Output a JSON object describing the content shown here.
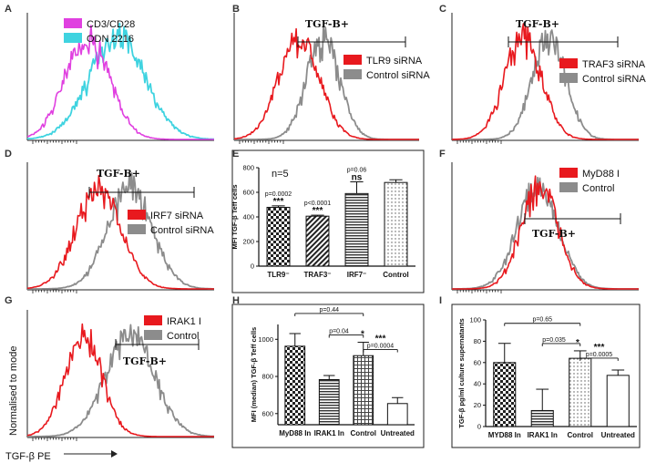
{
  "colors": {
    "red": "#e8191e",
    "gray": "#8c8c8c",
    "magenta": "#e040e0",
    "cyan": "#3fd3e0"
  },
  "chart_data": [
    {
      "panel": "A",
      "type": "histogram",
      "legend": [
        "CD3/CD28",
        "ODN 2216"
      ],
      "peaks": [
        0.32,
        0.48
      ],
      "widths": [
        0.12,
        0.15
      ]
    },
    {
      "panel": "B",
      "type": "histogram",
      "legend": [
        "TLR9 siRNA",
        "Control siRNA"
      ],
      "gate": "TGF-B+",
      "peaks": [
        0.35,
        0.48
      ],
      "widths": [
        0.11,
        0.09
      ]
    },
    {
      "panel": "C",
      "type": "histogram",
      "legend": [
        "TRAF3 siRNA",
        "Control siRNA"
      ],
      "gate": "TGF-B+",
      "peaks": [
        0.38,
        0.52
      ],
      "widths": [
        0.1,
        0.09
      ]
    },
    {
      "panel": "D",
      "type": "histogram",
      "legend": [
        "IRF7 siRNA",
        "Control siRNA"
      ],
      "gate": "TGF-B+",
      "peaks": [
        0.38,
        0.55
      ],
      "widths": [
        0.12,
        0.12
      ]
    },
    {
      "panel": "E",
      "type": "bar",
      "ylabel": "MFI TGF-β Teff cells",
      "note": "n=5",
      "ylim": [
        0,
        800
      ],
      "yticks": [
        0,
        200,
        400,
        600,
        800
      ],
      "categories": [
        "TLR9⁻",
        "TRAF3⁻",
        "IRF7⁻",
        "Control"
      ],
      "values": [
        478,
        406,
        590,
        680
      ],
      "errors": [
        12,
        8,
        95,
        22
      ],
      "annotations": [
        {
          "bar": 0,
          "p": "p=0.0002",
          "stars": "***"
        },
        {
          "bar": 1,
          "p": "p<0.0001",
          "stars": "***"
        },
        {
          "bar": 2,
          "p": "p=0.06",
          "stars": "ns"
        }
      ]
    },
    {
      "panel": "F",
      "type": "histogram",
      "legend": [
        "MyD88 I",
        "Control"
      ],
      "gate": "TGF-B+",
      "peaks": [
        0.47,
        0.46
      ],
      "widths": [
        0.1,
        0.11
      ]
    },
    {
      "panel": "G",
      "type": "histogram",
      "legend": [
        "IRAK1 I",
        "Control"
      ],
      "gate": "TGF-B+",
      "peaks": [
        0.3,
        0.55
      ],
      "widths": [
        0.1,
        0.13
      ],
      "ylabel": "Normalised to mode",
      "xlabel": "TGF-β PE"
    },
    {
      "panel": "H",
      "type": "bar",
      "ylabel": "MFI (median) TGF-β Teff cells",
      "ylim": [
        540,
        1080
      ],
      "yticks": [
        600,
        800,
        1000
      ],
      "categories": [
        "MyD88 In",
        "IRAK1 In",
        "Control",
        "Untreated"
      ],
      "values": [
        963,
        783,
        912,
        654
      ],
      "errors": [
        68,
        22,
        72,
        32
      ],
      "comparisons": [
        {
          "from": 0,
          "to": 2,
          "p": "p=0.44",
          "stars": ""
        },
        {
          "from": 1,
          "to": 2,
          "p": "p=0.04",
          "stars": "*"
        },
        {
          "from": 2,
          "to": 3,
          "p": "p=0.0004",
          "stars": "***"
        }
      ]
    },
    {
      "panel": "I",
      "type": "bar",
      "ylabel": "TGF-β pg/ml culture supernatants",
      "ylim": [
        0,
        100
      ],
      "yticks": [
        0,
        20,
        40,
        60,
        80,
        100
      ],
      "categories": [
        "MYD88 In",
        "IRAK1 In",
        "Control",
        "Untreated"
      ],
      "values": [
        60,
        15,
        64,
        48
      ],
      "errors": [
        18,
        20,
        7,
        5
      ],
      "comparisons": [
        {
          "from": 0,
          "to": 2,
          "p": "p=0.65",
          "stars": ""
        },
        {
          "from": 1,
          "to": 2,
          "p": "p=0.035",
          "stars": "*"
        },
        {
          "from": 2,
          "to": 3,
          "p": "p=0.0005",
          "stars": "***"
        }
      ]
    }
  ]
}
